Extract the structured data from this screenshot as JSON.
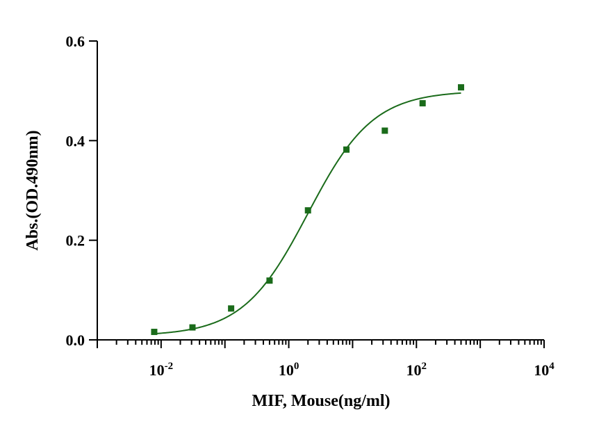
{
  "chart_data": {
    "type": "scatter",
    "title": "",
    "xlabel": "MIF, Mouse(ng/ml)",
    "ylabel": "Abs.(OD.490nm)",
    "x_scale": "log",
    "xlim": [
      0.001,
      10000
    ],
    "ylim": [
      0,
      0.6
    ],
    "grid": false,
    "legend": "none",
    "x_ticks": [
      {
        "value": 0.01,
        "base": "10",
        "exp": "-2"
      },
      {
        "value": 1,
        "base": "10",
        "exp": "0"
      },
      {
        "value": 100,
        "base": "10",
        "exp": "2"
      },
      {
        "value": 10000,
        "base": "10",
        "exp": "4"
      }
    ],
    "y_ticks": [
      {
        "value": 0.0,
        "label": "0.0"
      },
      {
        "value": 0.2,
        "label": "0.2"
      },
      {
        "value": 0.4,
        "label": "0.4"
      },
      {
        "value": 0.6,
        "label": "0.6"
      }
    ],
    "series": [
      {
        "color": "#1a6b1a",
        "points": [
          {
            "x": 0.0078,
            "y": 0.016
          },
          {
            "x": 0.031,
            "y": 0.025
          },
          {
            "x": 0.125,
            "y": 0.063
          },
          {
            "x": 0.5,
            "y": 0.119
          },
          {
            "x": 2.0,
            "y": 0.26
          },
          {
            "x": 8.0,
            "y": 0.382
          },
          {
            "x": 32.0,
            "y": 0.42
          },
          {
            "x": 125.0,
            "y": 0.475
          },
          {
            "x": 500.0,
            "y": 0.507
          }
        ],
        "fit": {
          "model": "4PL",
          "bottom": 0.008,
          "top": 0.5,
          "ec50": 2.0,
          "hill": 0.85,
          "x_range": [
            0.0078,
            500.0
          ]
        }
      }
    ]
  }
}
